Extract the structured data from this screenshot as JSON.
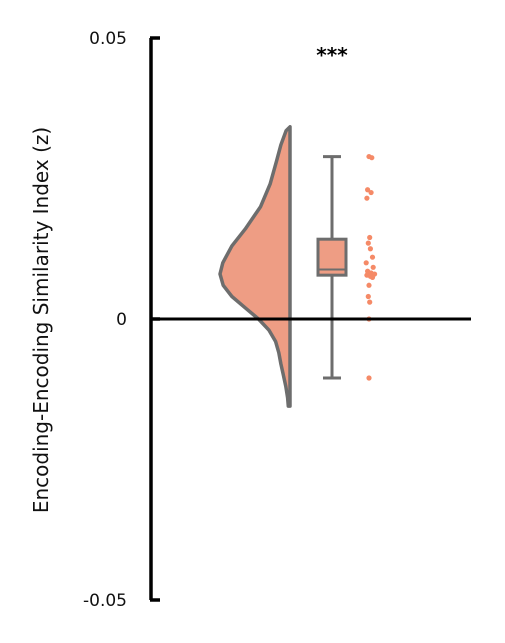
{
  "chart_data": {
    "type": "raincloud",
    "ylabel": "Encoding-Encoding Similarity Index (z)",
    "ylim": [
      -0.05,
      0.05
    ],
    "yticks": [
      {
        "value": 0.05,
        "label": "0.05"
      },
      {
        "value": 0,
        "label": "0"
      },
      {
        "value": -0.05,
        "label": "-0.05"
      }
    ],
    "reference_line": 0,
    "significance": "***",
    "colors": {
      "fill": "#ee9d84",
      "edge": "#6d6d6d",
      "points": "#f58a67",
      "axis": "#000000"
    },
    "boxplot": {
      "whisker_low": -0.0105,
      "q1": 0.0078,
      "median": 0.0088,
      "q3": 0.0142,
      "whisker_high": 0.0289
    },
    "density": {
      "y_min": -0.0155,
      "y_max": 0.0342,
      "points": [
        [
          0.0342,
          0.0
        ],
        [
          0.0335,
          0.055
        ],
        [
          0.031,
          0.13
        ],
        [
          0.028,
          0.195
        ],
        [
          0.024,
          0.285
        ],
        [
          0.02,
          0.42
        ],
        [
          0.016,
          0.64
        ],
        [
          0.013,
          0.83
        ],
        [
          0.01,
          0.96
        ],
        [
          0.008,
          1.0
        ],
        [
          0.006,
          0.955
        ],
        [
          0.004,
          0.83
        ],
        [
          0.002,
          0.64
        ],
        [
          0.0,
          0.45
        ],
        [
          -0.002,
          0.3
        ],
        [
          -0.004,
          0.205
        ],
        [
          -0.006,
          0.16
        ],
        [
          -0.008,
          0.13
        ],
        [
          -0.01,
          0.095
        ],
        [
          -0.012,
          0.06
        ],
        [
          -0.014,
          0.035
        ],
        [
          -0.0155,
          0.025
        ]
      ]
    },
    "data_points": [
      0.0289,
      0.0287,
      0.023,
      0.0225,
      0.0215,
      0.0145,
      0.0135,
      0.0125,
      0.011,
      0.01,
      0.0092,
      0.0085,
      0.0082,
      0.008,
      0.0079,
      0.0078,
      0.0076,
      0.0074,
      0.006,
      0.004,
      0.003,
      0.0,
      -0.0105
    ]
  }
}
